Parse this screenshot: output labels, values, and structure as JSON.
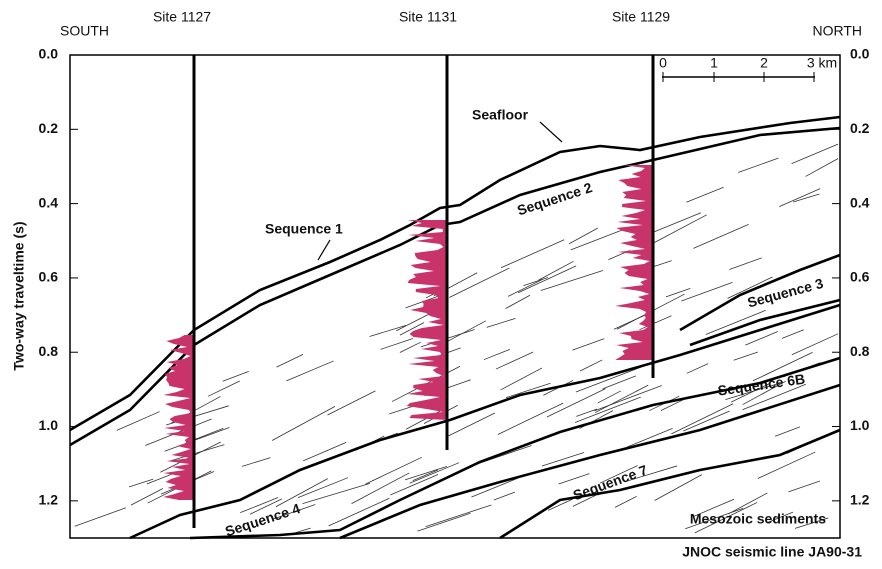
{
  "header": {
    "south": "SOUTH",
    "north": "NORTH"
  },
  "sites": [
    "Site 1127",
    "Site 1131",
    "Site 1129"
  ],
  "axis": {
    "label": "Two-way traveltime (s)",
    "ylim": [
      0,
      1.3
    ],
    "yticks": [
      {
        "value": 0,
        "label": "0.0"
      },
      {
        "value": 0.2,
        "label": "0.2"
      },
      {
        "value": 0.4,
        "label": "0.4"
      },
      {
        "value": 0.6,
        "label": "0.6"
      },
      {
        "value": 0.8,
        "label": "0.8"
      },
      {
        "value": 1,
        "label": "1.0"
      },
      {
        "value": 1.2,
        "label": "1.2"
      }
    ]
  },
  "annotations": {
    "seafloor": "Seafloor",
    "seq1": "Sequence 1",
    "seq2": "Sequence 2",
    "seq3": "Sequence 3",
    "seq4": "Sequence 4",
    "seq6b": "Sequence 6B",
    "seq7": "Sequence 7",
    "mesozoic": "Mesozoic sediments"
  },
  "scale_bar": {
    "labels": [
      "0",
      "1",
      "2",
      "3 km"
    ]
  },
  "caption": "JNOC seismic line JA90-31"
}
